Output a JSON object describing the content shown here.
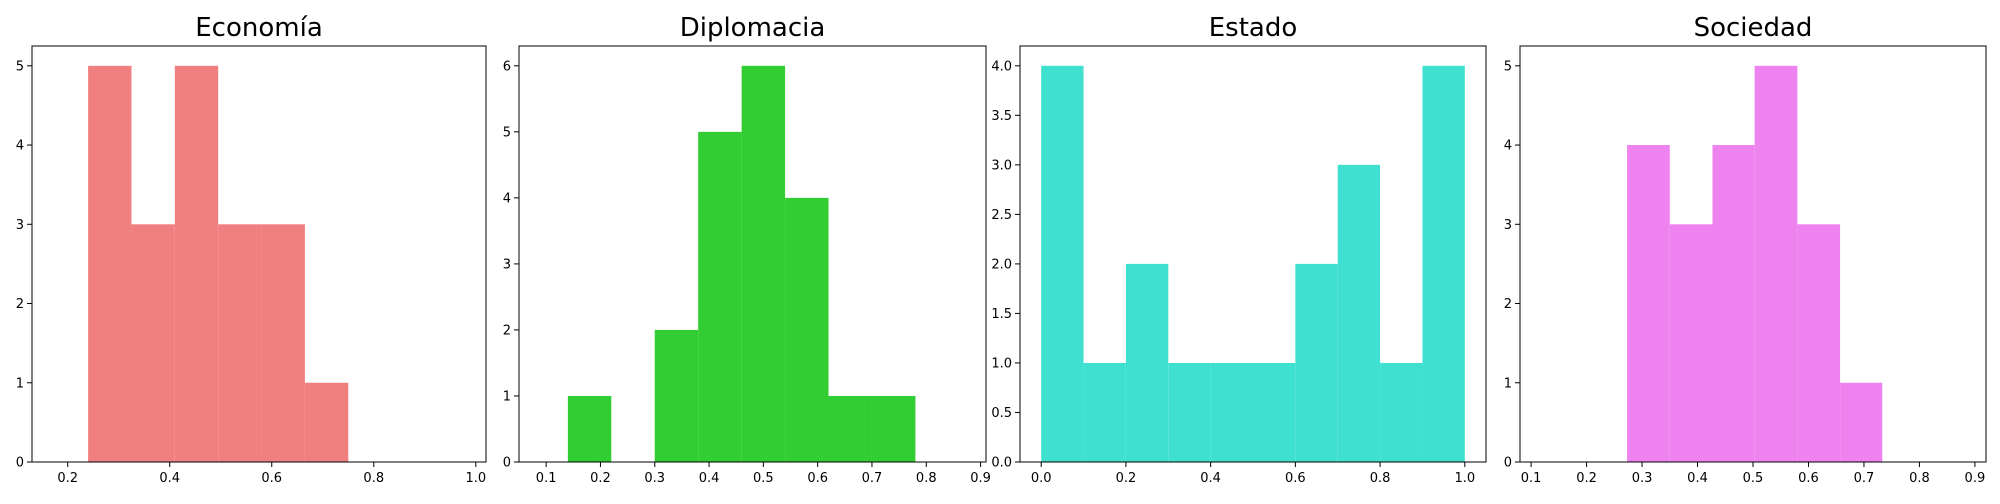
{
  "chart_data": [
    {
      "type": "bar",
      "title": "Economía",
      "xlabel": "",
      "ylabel": "",
      "color": "#f08080",
      "xlim": [
        0.13,
        1.02
      ],
      "ylim": [
        0,
        5.25
      ],
      "xticks": [
        0.2,
        0.4,
        0.6,
        0.8,
        1.0
      ],
      "xtick_labels": [
        "0.2",
        "0.4",
        "0.6",
        "0.8",
        "1.0"
      ],
      "yticks": [
        0,
        1,
        2,
        3,
        4,
        5
      ],
      "ytick_labels": [
        "0",
        "1",
        "2",
        "3",
        "4",
        "5"
      ],
      "bin_edges": [
        0.24,
        0.325,
        0.41,
        0.495,
        0.58,
        0.665,
        0.75
      ],
      "values": [
        5,
        3,
        5,
        3,
        3,
        1
      ]
    },
    {
      "type": "bar",
      "title": "Diplomacia",
      "xlabel": "",
      "ylabel": "",
      "color": "#32cd32",
      "xlim": [
        0.05,
        0.91
      ],
      "ylim": [
        0,
        6.3
      ],
      "xticks": [
        0.1,
        0.2,
        0.3,
        0.4,
        0.5,
        0.6,
        0.7,
        0.8,
        0.9
      ],
      "xtick_labels": [
        "0.1",
        "0.2",
        "0.3",
        "0.4",
        "0.5",
        "0.6",
        "0.7",
        "0.8",
        "0.9"
      ],
      "yticks": [
        0,
        1,
        2,
        3,
        4,
        5,
        6
      ],
      "ytick_labels": [
        "0",
        "1",
        "2",
        "3",
        "4",
        "5",
        "6"
      ],
      "bin_edges": [
        0.14,
        0.22,
        0.3,
        0.38,
        0.46,
        0.54,
        0.62,
        0.7,
        0.78
      ],
      "values": [
        1,
        0,
        2,
        5,
        6,
        4,
        1,
        1
      ]
    },
    {
      "type": "bar",
      "title": "Estado",
      "xlabel": "",
      "ylabel": "",
      "color": "#40e0d0",
      "xlim": [
        -0.05,
        1.05
      ],
      "ylim": [
        0,
        4.2
      ],
      "xticks": [
        0.0,
        0.2,
        0.4,
        0.6,
        0.8,
        1.0
      ],
      "xtick_labels": [
        "0.0",
        "0.2",
        "0.4",
        "0.6",
        "0.8",
        "1.0"
      ],
      "yticks": [
        0,
        0.5,
        1.0,
        1.5,
        2.0,
        2.5,
        3.0,
        3.5,
        4.0
      ],
      "ytick_labels": [
        "0.0",
        "0.5",
        "1.0",
        "1.5",
        "2.0",
        "2.5",
        "3.0",
        "3.5",
        "4.0"
      ],
      "bin_edges": [
        0.0,
        0.1,
        0.2,
        0.3,
        0.4,
        0.5,
        0.6,
        0.7,
        0.8,
        0.9,
        1.0
      ],
      "values": [
        4,
        1,
        2,
        1,
        1,
        1,
        2,
        3,
        1,
        4
      ]
    },
    {
      "type": "bar",
      "title": "Sociedad",
      "xlabel": "",
      "ylabel": "",
      "color": "#ee82ee",
      "xlim": [
        0.08,
        0.92
      ],
      "ylim": [
        0,
        5.25
      ],
      "xticks": [
        0.1,
        0.2,
        0.3,
        0.4,
        0.5,
        0.6,
        0.7,
        0.8,
        0.9
      ],
      "xtick_labels": [
        "0.1",
        "0.2",
        "0.3",
        "0.4",
        "0.5",
        "0.6",
        "0.7",
        "0.8",
        "0.9"
      ],
      "yticks": [
        0,
        1,
        2,
        3,
        4,
        5
      ],
      "ytick_labels": [
        "0",
        "1",
        "2",
        "3",
        "4",
        "5"
      ],
      "bin_edges": [
        0.273,
        0.35,
        0.427,
        0.503,
        0.58,
        0.657,
        0.733
      ],
      "values": [
        4,
        3,
        4,
        5,
        3,
        1
      ]
    }
  ]
}
